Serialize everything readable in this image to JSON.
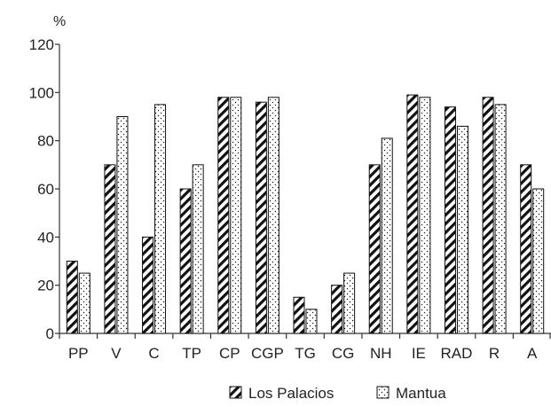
{
  "chart_data": {
    "type": "bar",
    "title": "",
    "xlabel": "",
    "ylabel": "%",
    "ylim": [
      0,
      120
    ],
    "yticks": [
      0,
      20,
      40,
      60,
      80,
      100,
      120
    ],
    "grid": false,
    "legend_position": "bottom",
    "categories": [
      "PP",
      "V",
      "C",
      "TP",
      "CP",
      "CGP",
      "TG",
      "CG",
      "NH",
      "IE",
      "RAD",
      "R",
      "A"
    ],
    "series": [
      {
        "name": "Los Palacios",
        "pattern": "diagonal-hatch",
        "color": "#111111",
        "values": [
          30,
          70,
          40,
          60,
          98,
          96,
          15,
          20,
          70,
          99,
          94,
          98,
          70
        ]
      },
      {
        "name": "Mantua",
        "pattern": "dotted",
        "color": "#111111",
        "values": [
          25,
          90,
          95,
          70,
          98,
          98,
          10,
          25,
          81,
          98,
          86,
          95,
          60
        ]
      }
    ]
  }
}
